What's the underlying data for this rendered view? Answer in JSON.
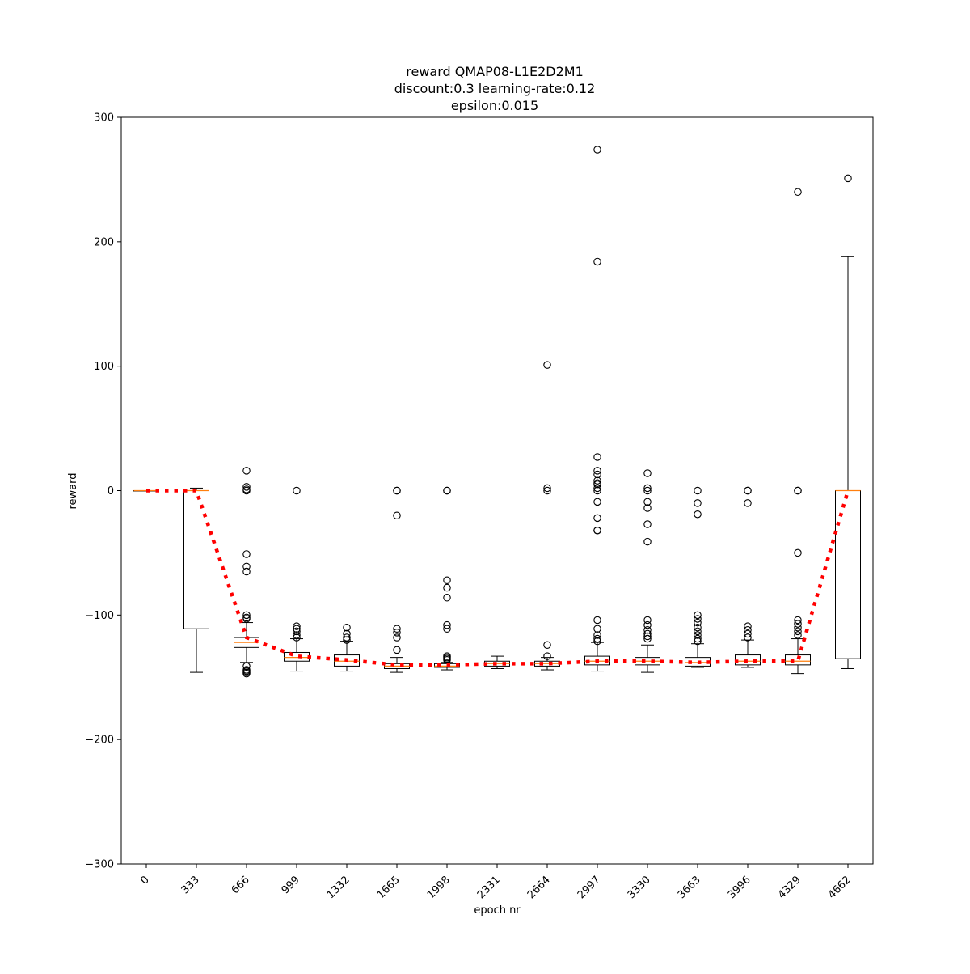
{
  "chart_data": {
    "type": "box",
    "title": [
      "reward QMAP08-L1E2D2M1",
      "discount:0.3 learning-rate:0.12",
      "epsilon:0.015"
    ],
    "xlabel": "epoch nr",
    "ylabel": "reward",
    "ylim": [
      -300,
      300
    ],
    "yticks": [
      300,
      200,
      100,
      0,
      -100,
      -200,
      -300
    ],
    "ytick_labels": [
      "300",
      "200",
      "100",
      "0",
      "−100",
      "−200",
      "−300"
    ],
    "categories": [
      "0",
      "333",
      "666",
      "999",
      "1332",
      "1665",
      "1998",
      "2331",
      "2664",
      "2997",
      "3330",
      "3663",
      "3996",
      "4329",
      "4662"
    ],
    "grid": false,
    "boxes": [
      {
        "q1": 0,
        "median": 0,
        "q3": 0,
        "whislo": 0,
        "whishi": 0,
        "fliers": []
      },
      {
        "q1": -111,
        "median": 0,
        "q3": 0,
        "whislo": -146,
        "whishi": 2,
        "fliers": []
      },
      {
        "q1": -126,
        "median": -122,
        "q3": -118,
        "whislo": -138,
        "whishi": -106,
        "fliers": [
          16,
          3,
          1,
          0,
          -51,
          -61,
          -65,
          -100,
          -102,
          -103,
          -141,
          -144,
          -145,
          -146,
          -147
        ]
      },
      {
        "q1": -137,
        "median": -134,
        "q3": -130,
        "whislo": -145,
        "whishi": -119,
        "fliers": [
          0,
          -109,
          -111,
          -113,
          -116,
          -118
        ]
      },
      {
        "q1": -141,
        "median": -137,
        "q3": -132,
        "whislo": -145,
        "whishi": -121,
        "fliers": [
          -110,
          -115,
          -118,
          -120
        ]
      },
      {
        "q1": -143,
        "median": -141,
        "q3": -139,
        "whislo": -146,
        "whishi": -134,
        "fliers": [
          0,
          0,
          -20,
          -111,
          -114,
          -118,
          -128
        ]
      },
      {
        "q1": -142,
        "median": -141,
        "q3": -139,
        "whislo": -144,
        "whishi": -138,
        "fliers": [
          0,
          0,
          -72,
          -78,
          -86,
          -108,
          -111,
          -133,
          -134,
          -135,
          -136
        ]
      },
      {
        "q1": -141,
        "median": -139,
        "q3": -137,
        "whislo": -143,
        "whishi": -133,
        "fliers": []
      },
      {
        "q1": -141,
        "median": -139,
        "q3": -137,
        "whislo": -144,
        "whishi": -134,
        "fliers": [
          101,
          2,
          0,
          -124,
          -133
        ]
      },
      {
        "q1": -140,
        "median": -137,
        "q3": -133,
        "whislo": -145,
        "whishi": -122,
        "fliers": [
          274,
          184,
          27,
          16,
          13,
          8,
          6,
          5,
          2,
          0,
          -9,
          -22,
          -32,
          -32,
          -104,
          -111,
          -116,
          -119,
          -121
        ]
      },
      {
        "q1": -140,
        "median": -137,
        "q3": -134,
        "whislo": -146,
        "whishi": -124,
        "fliers": [
          14,
          2,
          0,
          -9,
          -14,
          -27,
          -41,
          -104,
          -108,
          -112,
          -115,
          -117,
          -119
        ]
      },
      {
        "q1": -141,
        "median": -138,
        "q3": -134,
        "whislo": -142,
        "whishi": -123,
        "fliers": [
          0,
          -10,
          -19,
          -100,
          -103,
          -106,
          -110,
          -113,
          -116,
          -119,
          -121
        ]
      },
      {
        "q1": -140,
        "median": -137,
        "q3": -132,
        "whislo": -142,
        "whishi": -120,
        "fliers": [
          0,
          0,
          -10,
          -109,
          -112,
          -115,
          -118
        ]
      },
      {
        "q1": -140,
        "median": -137,
        "q3": -132,
        "whislo": -147,
        "whishi": -119,
        "fliers": [
          240,
          0,
          0,
          -50,
          -104,
          -107,
          -110,
          -113,
          -116
        ]
      },
      {
        "q1": -135,
        "median": 0,
        "q3": 0,
        "whislo": -143,
        "whishi": 188,
        "fliers": [
          251
        ]
      }
    ],
    "mean_line": {
      "color": "#ff0000",
      "style": "dotted",
      "values": [
        0,
        0,
        -118,
        -133,
        -136,
        -140,
        -140,
        -139,
        -139,
        -137,
        -137,
        -138,
        -137,
        -137,
        0
      ]
    },
    "colors": {
      "box": "#000000",
      "median": "#ff7f0e",
      "mean": "#ff0000"
    }
  }
}
